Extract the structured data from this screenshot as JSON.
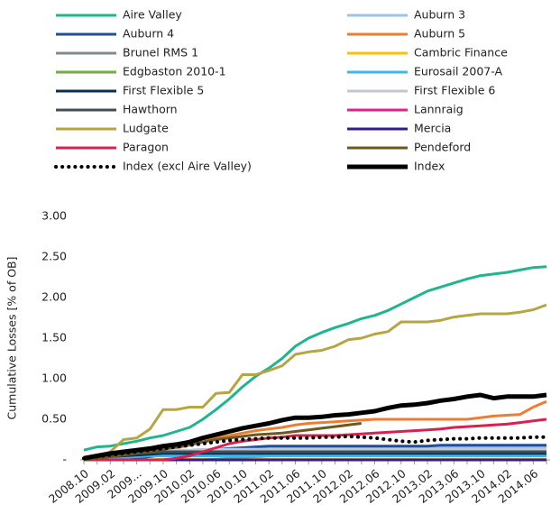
{
  "chart_data": {
    "type": "line",
    "y_label": "Cumulative Losses [% of OB]",
    "categories": [
      "2008.10",
      null,
      "2009.02",
      null,
      "2009...",
      null,
      "2009.10",
      null,
      "2010.02",
      null,
      "2010.06",
      null,
      "2010.10",
      null,
      "2011.02",
      null,
      "2011.06",
      null,
      "2011.10",
      null,
      "2012.02",
      null,
      "2012.06",
      null,
      "2012.10",
      null,
      "2013.02",
      null,
      "2013.06",
      null,
      "2013.10",
      null,
      "2014.02",
      null,
      "2014.06",
      null
    ],
    "ylim": [
      0,
      3
    ],
    "yticks": [
      {
        "value": 0,
        "label": "-"
      },
      {
        "value": 0.5,
        "label": "0.50"
      },
      {
        "value": 1,
        "label": "1.00"
      },
      {
        "value": 1.5,
        "label": "1.50"
      },
      {
        "value": 2,
        "label": "2.00"
      },
      {
        "value": 2.5,
        "label": "2.50"
      },
      {
        "value": 3,
        "label": "3.00"
      }
    ],
    "series": [
      {
        "name": "Aire Valley",
        "color": "#1fb58f",
        "values": [
          0.12,
          0.16,
          0.17,
          0.2,
          0.23,
          0.27,
          0.3,
          0.35,
          0.4,
          0.5,
          0.62,
          0.75,
          0.9,
          1.03,
          1.13,
          1.25,
          1.4,
          1.5,
          1.57,
          1.63,
          1.68,
          1.74,
          1.78,
          1.84,
          1.92,
          2.0,
          2.08,
          2.13,
          2.18,
          2.23,
          2.27,
          2.29,
          2.31,
          2.34,
          2.37,
          2.38
        ]
      },
      {
        "name": "Auburn 3",
        "color": "#9dc3e6",
        "values": [
          0,
          0,
          0,
          0.02,
          0.04,
          0.06,
          0.08,
          0.09,
          0.1,
          0.11,
          0.12,
          0.13,
          0.14,
          0.14,
          0.15,
          0.15,
          0.15,
          0.15,
          0.15,
          0.15,
          0.15,
          0.15,
          0.15,
          0.15,
          0.15,
          0.15,
          0.15,
          0.15,
          0.15,
          0.15,
          0.15,
          0.15,
          0.15,
          0.15,
          0.15,
          0.15
        ]
      },
      {
        "name": "Auburn 4",
        "color": "#1f4e9c",
        "values": [
          0,
          0,
          0,
          0,
          0.02,
          0.04,
          0.06,
          0.08,
          0.1,
          0.12,
          0.13,
          0.14,
          0.15,
          0.16,
          0.17,
          0.17,
          0.17,
          0.17,
          0.17,
          0.17,
          0.17,
          0.17,
          0.17,
          0.17,
          0.17,
          0.17,
          0.17,
          0.18,
          0.18,
          0.18,
          0.18,
          0.18,
          0.18,
          0.18,
          0.18,
          0.18
        ]
      },
      {
        "name": "Auburn 5",
        "color": "#ed7d31",
        "values": [
          0,
          0,
          0,
          0.02,
          0.05,
          0.1,
          0.13,
          0.15,
          0.18,
          0.22,
          0.27,
          0.3,
          0.33,
          0.36,
          0.38,
          0.4,
          0.43,
          0.45,
          0.46,
          0.47,
          0.48,
          0.49,
          0.5,
          0.5,
          0.5,
          0.5,
          0.5,
          0.5,
          0.5,
          0.5,
          0.52,
          0.54,
          0.55,
          0.56,
          0.65,
          0.72
        ]
      },
      {
        "name": "Brunel RMS 1",
        "color": "#7f8c8d",
        "values": [
          0,
          0,
          0.02,
          0.04,
          0.06,
          0.07,
          0.08,
          0.09,
          0.1,
          0.11,
          0.12,
          0.12,
          0.12,
          0.12,
          0.12,
          0.12,
          0.12,
          0.12,
          0.12,
          0.12,
          0.12,
          0.12,
          0.12,
          0.12,
          0.12,
          0.12,
          0.12,
          0.12,
          0.12,
          0.12,
          0.12,
          0.12,
          0.12,
          0.12,
          0.12,
          0.12
        ]
      },
      {
        "name": "Cambric Finance",
        "color": "#ffc000",
        "values": [
          0,
          0,
          0,
          0,
          0,
          0,
          0.01,
          0.01,
          0.01,
          0.01,
          0.01,
          0.01,
          0.01,
          0.01,
          0.01,
          0.01,
          0.01,
          0.01,
          0.01,
          0.01,
          0.01,
          0.01,
          0.01,
          0.01,
          0.01,
          0.01,
          0.01,
          0.01,
          0.01,
          0.01,
          0.01,
          0.01,
          0.01,
          0.01,
          0.01,
          0.01
        ]
      },
      {
        "name": "Edgbaston 2010-1",
        "color": "#70ad47",
        "values": [
          null,
          null,
          null,
          null,
          null,
          null,
          null,
          null,
          null,
          0,
          0.01,
          0.02,
          0.03,
          0.04,
          0.05,
          0.06,
          0.07,
          0.08,
          0.08,
          0.08,
          0.08,
          0.09,
          0.09,
          0.09,
          0.1,
          0.1,
          0.1,
          0.1,
          0.1,
          0.1,
          0.1,
          0.1,
          0.1,
          0.1,
          0.1,
          0.1
        ]
      },
      {
        "name": "Eurosail 2007-A",
        "color": "#3fb6ef",
        "values": [
          0,
          0.01,
          0.02,
          0.03,
          0.04,
          0.05,
          0.05,
          0.05,
          0.05,
          0.05,
          0.05,
          0.05,
          0.05,
          0.05,
          0.05,
          0.05,
          0.05,
          0.05,
          0.05,
          0.05,
          0.05,
          0.05,
          0.05,
          0.05,
          0.05,
          0.05,
          0.05,
          0.05,
          0.05,
          0.05,
          0.05,
          0.05,
          0.05,
          0.05,
          0.05,
          0.05
        ]
      },
      {
        "name": "First Flexible 5",
        "color": "#0b2d4e",
        "values": [
          0.02,
          0.03,
          0.04,
          0.05,
          0.06,
          0.07,
          0.08,
          0.08,
          0.08,
          0.08,
          0.08,
          0.08,
          0.08,
          0.08,
          0.08,
          0.08,
          0.08,
          0.08,
          0.08,
          0.08,
          0.08,
          0.08,
          0.08,
          0.08,
          0.08,
          0.08,
          0.08,
          0.08,
          0.08,
          0.08,
          0.08,
          0.08,
          0.08,
          0.08,
          0.08,
          0.08
        ]
      },
      {
        "name": "First Flexible 6",
        "color": "#c0c7d0",
        "values": [
          0.02,
          0.04,
          0.06,
          0.08,
          0.1,
          0.11,
          0.12,
          0.12,
          0.12,
          0.13,
          0.13,
          0.13,
          0.13,
          0.13,
          0.13,
          0.13,
          0.13,
          0.13,
          0.13,
          0.13,
          0.13,
          0.13,
          0.13,
          0.13,
          0.13,
          0.13,
          0.13,
          0.13,
          0.13,
          0.13,
          0.13,
          0.13,
          0.13,
          0.13,
          0.13,
          0.13
        ]
      },
      {
        "name": "Hawthorn",
        "color": "#404e59",
        "values": [
          0.01,
          0.02,
          0.04,
          0.06,
          0.08,
          0.09,
          0.1,
          0.1,
          0.1,
          0.1,
          0.1,
          0.1,
          0.1,
          0.1,
          0.1,
          0.1,
          0.1,
          0.1,
          0.1,
          0.1,
          0.1,
          0.1,
          0.1,
          0.1,
          0.1,
          0.1,
          0.1,
          0.1,
          0.1,
          0.1,
          0.1,
          0.1,
          0.1,
          0.1,
          0.1,
          0.1
        ]
      },
      {
        "name": "Lannraig",
        "color": "#e0218a",
        "values": [
          null,
          null,
          null,
          null,
          null,
          null,
          null,
          null,
          null,
          null,
          null,
          null,
          null,
          null,
          null,
          null,
          null,
          null,
          null,
          null,
          null,
          null,
          null,
          null,
          0,
          0,
          0,
          0,
          0,
          0,
          0,
          0,
          0,
          0,
          0,
          0
        ]
      },
      {
        "name": "Ludgate",
        "color": "#b5a642",
        "values": [
          0.02,
          0.02,
          0.1,
          0.25,
          0.27,
          0.38,
          0.62,
          0.62,
          0.65,
          0.65,
          0.82,
          0.83,
          1.05,
          1.05,
          1.1,
          1.16,
          1.3,
          1.33,
          1.35,
          1.4,
          1.48,
          1.5,
          1.55,
          1.58,
          1.7,
          1.7,
          1.7,
          1.72,
          1.76,
          1.78,
          1.8,
          1.8,
          1.8,
          1.82,
          1.85,
          1.91
        ]
      },
      {
        "name": "Mercia",
        "color": "#3a1a8a",
        "values": [
          0,
          0,
          0,
          0,
          0,
          0,
          0,
          0,
          0,
          0,
          0,
          0,
          0,
          0,
          0,
          0,
          0,
          0,
          0,
          0,
          0,
          0,
          0,
          0,
          0,
          0,
          0,
          0,
          0,
          0,
          0,
          0,
          0,
          0,
          0,
          0
        ]
      },
      {
        "name": "Paragon",
        "color": "#d9204f",
        "values": [
          0,
          0,
          0,
          0,
          0,
          0,
          0,
          0.02,
          0.05,
          0.1,
          0.15,
          0.2,
          0.23,
          0.25,
          0.27,
          0.28,
          0.3,
          0.3,
          0.3,
          0.3,
          0.31,
          0.32,
          0.33,
          0.34,
          0.35,
          0.36,
          0.37,
          0.38,
          0.4,
          0.41,
          0.42,
          0.43,
          0.44,
          0.46,
          0.48,
          0.5
        ]
      },
      {
        "name": "Pendeford",
        "color": "#6b5a1e",
        "values": [
          0,
          0.02,
          0.04,
          0.06,
          0.08,
          0.1,
          0.13,
          0.16,
          0.19,
          0.22,
          0.25,
          0.27,
          0.29,
          0.31,
          0.32,
          0.33,
          0.35,
          0.37,
          0.39,
          0.41,
          0.43,
          0.45,
          null,
          null,
          null,
          null,
          null,
          null,
          null,
          null,
          null,
          null,
          null,
          null,
          null,
          null
        ]
      },
      {
        "name": "Index (excl Aire Valley)",
        "color": "#000000",
        "linestyle": "dotted",
        "values": [
          0.02,
          0.04,
          0.06,
          0.08,
          0.1,
          0.12,
          0.14,
          0.16,
          0.18,
          0.2,
          0.22,
          0.24,
          0.25,
          0.26,
          0.27,
          0.27,
          0.27,
          0.27,
          0.28,
          0.28,
          0.29,
          0.28,
          0.27,
          0.25,
          0.23,
          0.22,
          0.24,
          0.25,
          0.26,
          0.26,
          0.27,
          0.27,
          0.27,
          0.27,
          0.28,
          0.28
        ]
      },
      {
        "name": "Index",
        "color": "#000000",
        "linestyle": "thick",
        "values": [
          0.02,
          0.05,
          0.08,
          0.1,
          0.12,
          0.14,
          0.17,
          0.19,
          0.22,
          0.27,
          0.31,
          0.35,
          0.39,
          0.42,
          0.45,
          0.49,
          0.52,
          0.52,
          0.53,
          0.55,
          0.56,
          0.58,
          0.6,
          0.64,
          0.67,
          0.68,
          0.7,
          0.73,
          0.75,
          0.78,
          0.8,
          0.76,
          0.78,
          0.78,
          0.78,
          0.8
        ]
      }
    ]
  }
}
